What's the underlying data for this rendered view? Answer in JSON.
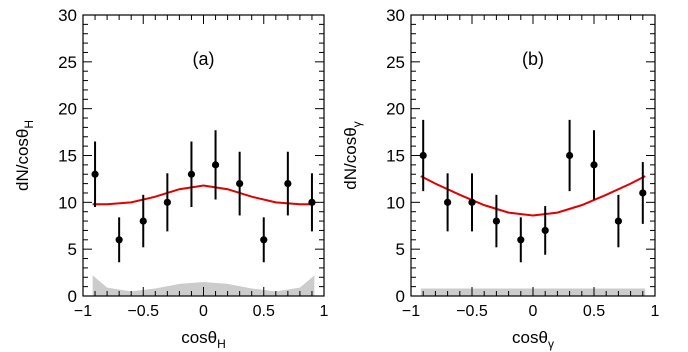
{
  "chart_data": [
    {
      "type": "scatter",
      "panel_label": "(a)",
      "xlabel": "cosθ_H",
      "ylabel": "dN/cosθ_H",
      "xlim": [
        -1,
        1
      ],
      "ylim": [
        0,
        30
      ],
      "xticks": [
        "−1",
        "−0.5",
        "0",
        "0.5",
        "1"
      ],
      "yticks": [
        "0",
        "5",
        "10",
        "15",
        "20",
        "25",
        "30"
      ],
      "data": {
        "x": [
          -0.9,
          -0.7,
          -0.5,
          -0.3,
          -0.1,
          0.1,
          0.3,
          0.5,
          0.7,
          0.9
        ],
        "y": [
          13,
          6,
          8,
          10,
          13,
          14,
          12,
          6,
          12,
          10
        ],
        "yerr_low": [
          3.5,
          2.4,
          2.8,
          3.1,
          3.5,
          3.7,
          3.4,
          2.4,
          3.4,
          3.1
        ],
        "yerr_high": [
          3.5,
          2.4,
          2.8,
          3.1,
          3.5,
          3.7,
          3.4,
          2.4,
          3.4,
          3.1
        ]
      },
      "fit": {
        "color": "#e00000",
        "x": [
          -0.92,
          -0.8,
          -0.6,
          -0.4,
          -0.2,
          0.0,
          0.2,
          0.4,
          0.6,
          0.8,
          0.92
        ],
        "y": [
          9.8,
          9.8,
          10.0,
          10.6,
          11.4,
          11.8,
          11.4,
          10.6,
          10.0,
          9.8,
          9.8
        ]
      },
      "band": {
        "color": "#cccccc",
        "x": [
          -0.92,
          -0.8,
          -0.6,
          -0.4,
          -0.2,
          0.0,
          0.2,
          0.4,
          0.6,
          0.8,
          0.92
        ],
        "y": [
          2.2,
          0.9,
          0.5,
          0.8,
          1.3,
          1.5,
          1.3,
          0.8,
          0.5,
          0.9,
          2.2
        ]
      }
    },
    {
      "type": "scatter",
      "panel_label": "(b)",
      "xlabel": "cosθ_γ",
      "ylabel": "dN/cosθ_γ",
      "xlim": [
        -1,
        1
      ],
      "ylim": [
        0,
        30
      ],
      "xticks": [
        "−1",
        "−0.5",
        "0",
        "0.5",
        "1"
      ],
      "yticks": [
        "0",
        "5",
        "10",
        "15",
        "20",
        "25",
        "30"
      ],
      "data": {
        "x": [
          -0.9,
          -0.7,
          -0.5,
          -0.3,
          -0.1,
          0.1,
          0.3,
          0.5,
          0.7,
          0.9
        ],
        "y": [
          15,
          10,
          10,
          8,
          6,
          7,
          15,
          14,
          8,
          11
        ],
        "yerr_low": [
          3.8,
          3.1,
          3.1,
          2.8,
          2.4,
          2.6,
          3.8,
          3.7,
          2.8,
          3.3
        ],
        "yerr_high": [
          3.8,
          3.1,
          3.1,
          2.8,
          2.4,
          2.6,
          3.8,
          3.7,
          2.8,
          3.3
        ]
      },
      "fit": {
        "color": "#e00000",
        "x": [
          -0.92,
          -0.8,
          -0.6,
          -0.4,
          -0.2,
          0.0,
          0.2,
          0.4,
          0.6,
          0.8,
          0.92
        ],
        "y": [
          12.8,
          12.0,
          10.8,
          9.7,
          8.9,
          8.6,
          8.9,
          9.7,
          10.8,
          12.0,
          12.8
        ]
      },
      "band": {
        "color": "#cccccc",
        "x": [
          -0.92,
          0.92
        ],
        "y": [
          0.8,
          0.8
        ]
      }
    }
  ]
}
